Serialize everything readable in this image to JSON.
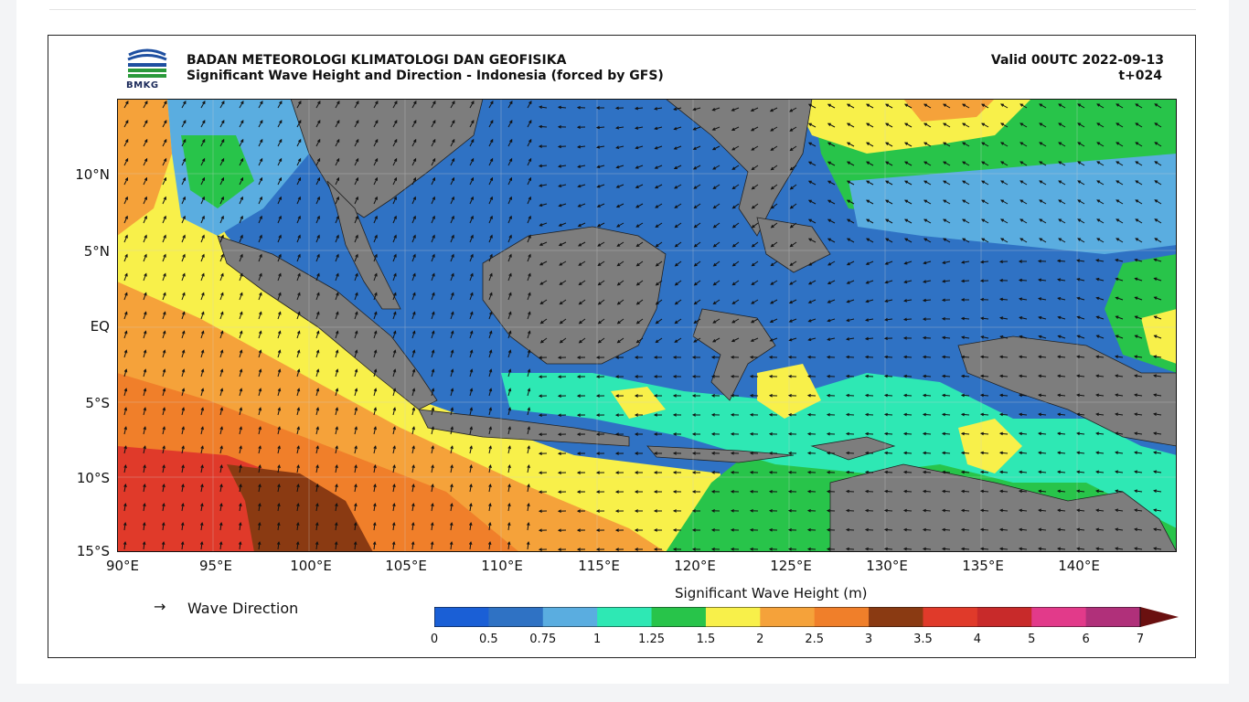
{
  "header": {
    "logo_text": "BMKG",
    "org_title": "BADAN METEOROLOGI KLIMATOLOGI DAN GEOFISIKA",
    "sub_title": "Significant Wave Height and Direction - Indonesia (forced by GFS)",
    "valid_label": "Valid 00UTC 2022-09-13",
    "lead_label": "t+024"
  },
  "map": {
    "lat_labels": [
      "10°N",
      "5°N",
      "EQ",
      "5°S",
      "10°S",
      "15°S"
    ],
    "lon_labels": [
      "90°E",
      "95°E",
      "100°E",
      "105°E",
      "110°E",
      "115°E",
      "120°E",
      "125°E",
      "130°E",
      "135°E",
      "140°E"
    ],
    "land_color": "#7d7d7d",
    "region": "Indonesia"
  },
  "legend": {
    "arrow_icon": "→",
    "direction_label": "Wave Direction",
    "colorbar_title": "Significant Wave Height (m)",
    "ticks": [
      "0",
      "0.5",
      "0.75",
      "1",
      "1.25",
      "1.5",
      "2",
      "2.5",
      "3",
      "3.5",
      "4",
      "5",
      "6",
      "7"
    ],
    "colors": [
      "#1a5fd6",
      "#2f72c4",
      "#5aade0",
      "#2ee8b4",
      "#28c44a",
      "#f8f04a",
      "#f5a23a",
      "#f07f2a",
      "#8a3a12",
      "#e03a2a",
      "#c82a2a",
      "#e23a8a",
      "#b0307a"
    ]
  }
}
